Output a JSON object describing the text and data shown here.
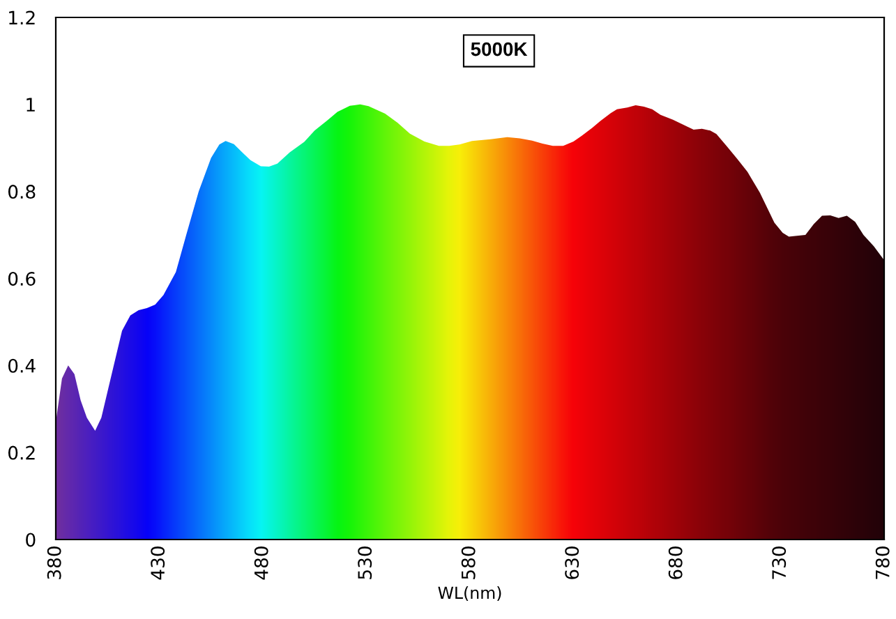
{
  "chart_data": {
    "type": "area",
    "title": "5000K",
    "xlabel": "WL(nm)",
    "x": [
      380,
      383,
      386,
      389,
      392,
      395,
      399,
      402,
      405,
      408,
      412,
      416,
      420,
      424,
      428,
      432,
      438,
      443,
      449,
      455,
      459,
      462,
      466,
      470,
      474,
      479,
      483,
      487,
      493,
      500,
      505,
      511,
      516,
      522,
      527,
      531,
      539,
      545,
      551,
      558,
      565,
      570,
      575,
      581,
      590,
      598,
      604,
      610,
      615,
      620,
      625,
      630,
      634,
      639,
      643,
      648,
      651,
      656,
      660,
      664,
      668,
      672,
      678,
      685,
      688,
      692,
      696,
      699,
      704,
      709,
      714,
      720,
      727,
      731,
      734,
      738,
      742,
      746,
      750,
      754,
      758,
      762,
      766,
      770,
      775,
      780
    ],
    "values": [
      0.27,
      0.37,
      0.4,
      0.38,
      0.32,
      0.28,
      0.25,
      0.28,
      0.34,
      0.4,
      0.48,
      0.515,
      0.527,
      0.532,
      0.54,
      0.562,
      0.615,
      0.7,
      0.8,
      0.877,
      0.908,
      0.916,
      0.909,
      0.89,
      0.872,
      0.858,
      0.857,
      0.864,
      0.89,
      0.914,
      0.94,
      0.963,
      0.983,
      0.997,
      1.0,
      0.996,
      0.979,
      0.958,
      0.933,
      0.915,
      0.905,
      0.905,
      0.908,
      0.916,
      0.92,
      0.925,
      0.922,
      0.917,
      0.91,
      0.905,
      0.905,
      0.915,
      0.928,
      0.946,
      0.962,
      0.98,
      0.989,
      0.993,
      0.998,
      0.995,
      0.989,
      0.976,
      0.965,
      0.949,
      0.942,
      0.944,
      0.94,
      0.932,
      0.904,
      0.875,
      0.845,
      0.797,
      0.728,
      0.705,
      0.696,
      0.698,
      0.7,
      0.725,
      0.744,
      0.745,
      0.739,
      0.744,
      0.73,
      0.7,
      0.674,
      0.642
    ],
    "colors": [
      "#7030a0",
      "#692da6",
      "#612aad",
      "#5a26b3",
      "#5223b9",
      "#4b20c0",
      "#411cc8",
      "#3919ce",
      "#3215d5",
      "#2a12db",
      "#200ee4",
      "#160aec",
      "#0c05f4",
      "#0201fd",
      "#000eff",
      "#0022ff",
      "#003fff",
      "#0057ff",
      "#0073ff",
      "#0090ff",
      "#00a4ff",
      "#00b2ff",
      "#00c5ff",
      "#00d9ff",
      "#00ecff",
      "#00fff9",
      "#00ffdf",
      "#00ffc6",
      "#00ff9f",
      "#00ff73",
      "#00ff53",
      "#00ff2d",
      "#00ff0d",
      "#12ff00",
      "#29ff00",
      "#3bff00",
      "#60ff00",
      "#7bff00",
      "#96ff00",
      "#b6ff00",
      "#d6ff00",
      "#edff00",
      "#fffa00",
      "#ffdf00",
      "#ffb500",
      "#ff9000",
      "#ff7400",
      "#ff5800",
      "#ff4100",
      "#ff2a00",
      "#ff1300",
      "#fd0000",
      "#f60000",
      "#ec0000",
      "#e50000",
      "#dc0000",
      "#d60000",
      "#cd0000",
      "#c50000",
      "#be0000",
      "#b60000",
      "#af0000",
      "#a40000",
      "#970000",
      "#920000",
      "#8b0000",
      "#840000",
      "#7f0000",
      "#770000",
      "#6e0000",
      "#660000",
      "#5b0000",
      "#4f0000",
      "#490000",
      "#460000",
      "#430000",
      "#3f0000",
      "#3c0000",
      "#380000",
      "#350000",
      "#310000",
      "#2e0000",
      "#2a0000",
      "#270000",
      "#220000",
      "#1e0000"
    ],
    "xlim": [
      380,
      780
    ],
    "ylim": [
      0,
      1.2
    ],
    "xticks": [
      380,
      430,
      480,
      530,
      580,
      630,
      680,
      730,
      780
    ],
    "yticks": [
      0,
      0.2,
      0.4,
      0.6,
      0.8,
      1,
      1.2
    ]
  }
}
